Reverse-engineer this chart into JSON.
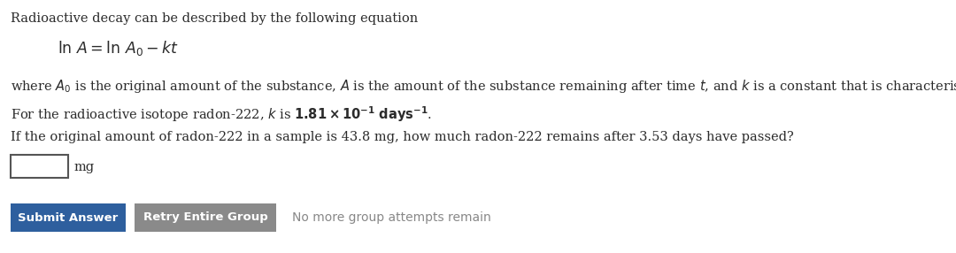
{
  "bg_color": "#ffffff",
  "text_color": "#2b2b2b",
  "line1": "Radioactive decay can be described by the following equation",
  "line1_fontsize": 10.5,
  "eq_fontsize": 12.5,
  "body_fontsize": 10.5,
  "btn1_color": "#2e5f9e",
  "btn1_text": "Submit Answer",
  "btn1_text_color": "#ffffff",
  "btn2_color": "#8a8a8a",
  "btn2_text": "Retry Entire Group",
  "btn2_text_color": "#ffffff",
  "btn3_text": "No more group attempts remain",
  "btn3_color": "#888888",
  "input_border_color": "#555555"
}
